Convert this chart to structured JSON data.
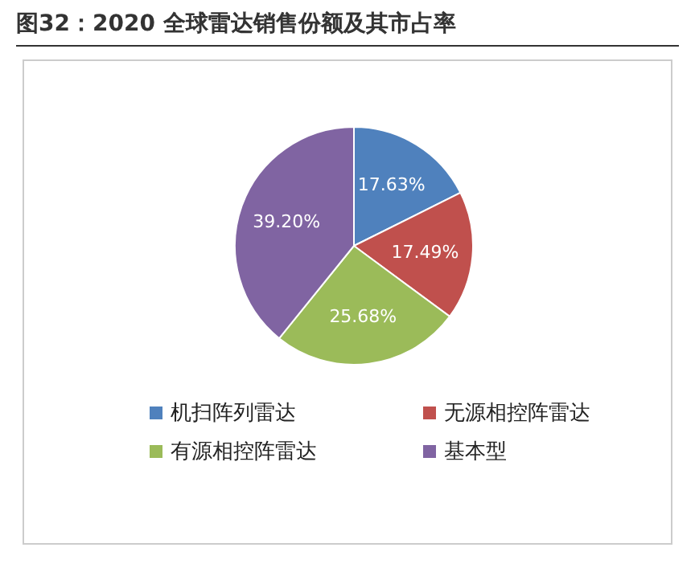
{
  "chart_data": {
    "type": "pie",
    "title": "图32：2020 全球雷达销售份额及其市占率",
    "categories": [
      "机扫阵列雷达",
      "无源相控阵雷达",
      "有源相控阵雷达",
      "基本型"
    ],
    "values": [
      17.63,
      17.49,
      25.68,
      39.2
    ],
    "value_labels": [
      "17.63%",
      "17.49%",
      "25.68%",
      "39.20%"
    ],
    "colors": [
      "#4f81bd",
      "#c0504d",
      "#9bbb59",
      "#8064a2"
    ],
    "legend": "bottom"
  }
}
